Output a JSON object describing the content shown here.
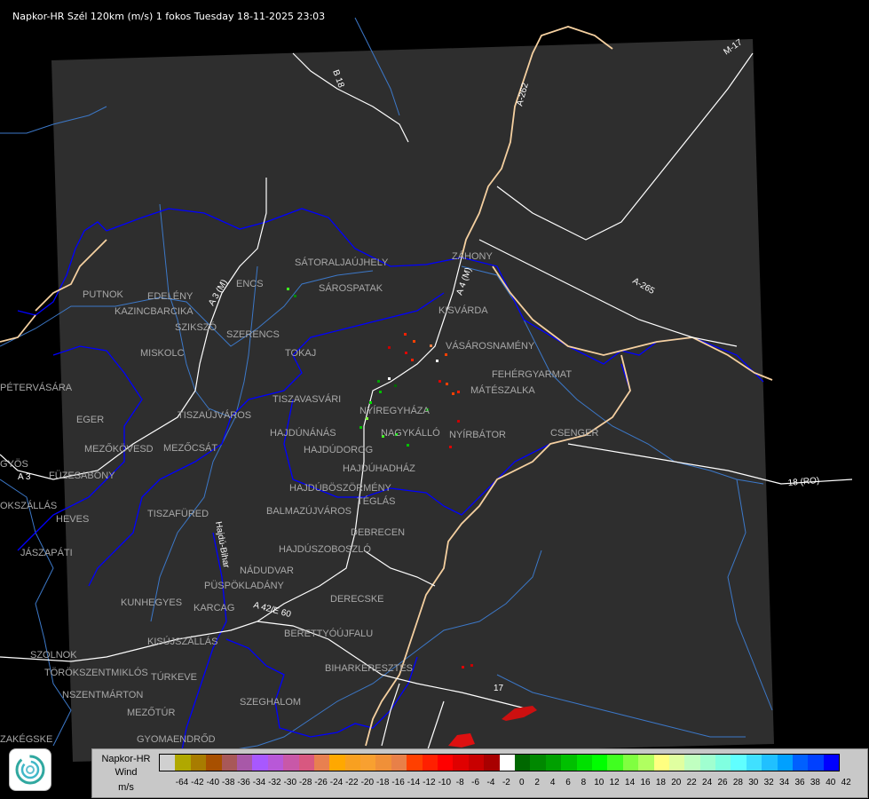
{
  "header": {
    "title": "Napkor-HR Szél 120km (m/s) 1 fokos Tuesday 18-11-2025 23:03"
  },
  "map": {
    "background_color": "#000000",
    "coverage_color": "#2e2e2e",
    "border_color": "#0000ff",
    "national_border_color": "#f5d0a0",
    "river_color": "#3c78c8",
    "road_color": "#ffffff",
    "cities": [
      "SÁTORALJAÚJHELY",
      "SÁROSPATAK",
      "ZÁHONY",
      "KISVÁRDA",
      "VÁSÁROSNAMÉNY",
      "PUTNOK",
      "EDELÉNY",
      "KAZINCBARCIKA",
      "SZIKSZÓ",
      "ENCS",
      "SZERENCS",
      "TOKAJ",
      "MISKOLC",
      "PÉTERVÁSÁRA",
      "EGER",
      "TISZAÚJVÁROS",
      "TISZAVASVÁRI",
      "HAJDÚNÁNÁS",
      "HAJDÚDOROG",
      "NYÍREGYHÁZA",
      "NAGYKÁLLÓ",
      "MÁTÉSZALKA",
      "FEHÉRGYARMAT",
      "NYÍRBÁTOR",
      "CSENGER",
      "MEZŐKÖVESD",
      "MEZŐCSÁT",
      "GYÖS",
      "FÜZESABONY",
      "HAJDÚBÖSZÖRMÉNY",
      "HAJDÚHADHÁZ",
      "TÉGLÁS",
      "BALMAZÚJVÁROS",
      "TISZAFÜRED",
      "HEVES",
      "OKSZÁLLÁS",
      "DEBRECEN",
      "JÁSZAPÁTI",
      "NÁDUDVAR",
      "HAJDÚSZOBOSZLÓ",
      "KUNHEGYES",
      "KARCAG",
      "PÜSPÖKLADÁNY",
      "DERECSKE",
      "BERETTYÓÚJFALU",
      "KISÚJSZÁLLÁS",
      "SZOLNOK",
      "TÖRÖKSZENTMIKLÓS",
      "TÚRKEVE",
      "BIHARKERESZTES",
      "SZEGHALOM",
      "MEZŐTÚR",
      "ZAKÉGSKE",
      "GYOMAENDRŐD",
      "NSZENTMÁRTON"
    ],
    "road_labels": [
      "B 18",
      "A-262",
      "M-17",
      "A-265",
      "A 3 (M)",
      "A 4 (M)",
      "18 (RO)",
      "A 42/E 60",
      "17",
      "A 3",
      "Hajdú-Bihar"
    ]
  },
  "legend": {
    "title_lines": [
      "Napkor-HR",
      "Wind",
      "m/s"
    ],
    "no_data_color": "#d0d0d0",
    "labels": [
      "-64",
      "-42",
      "-40",
      "-38",
      "-36",
      "-34",
      "-32",
      "-30",
      "-28",
      "-26",
      "-24",
      "-22",
      "-20",
      "-18",
      "-16",
      "-14",
      "-12",
      "-10",
      "-8",
      "-6",
      "-4",
      "-2",
      "0",
      "2",
      "4",
      "6",
      "8",
      "10",
      "12",
      "14",
      "16",
      "18",
      "20",
      "22",
      "24",
      "26",
      "28",
      "30",
      "32",
      "34",
      "36",
      "38",
      "40",
      "42"
    ],
    "colors": [
      "#d0d0d0",
      "#b0a800",
      "#a87c00",
      "#a85000",
      "#a85858",
      "#a858a8",
      "#a858ff",
      "#b858d8",
      "#c858a8",
      "#d85880",
      "#e88050",
      "#ffa800",
      "#f8a020",
      "#f8a030",
      "#f09038",
      "#e88048",
      "#ff4000",
      "#ff2000",
      "#ff0000",
      "#e00000",
      "#c80000",
      "#a80000",
      "#ffffff",
      "#006800",
      "#008800",
      "#00a000",
      "#00c000",
      "#00e000",
      "#00ff00",
      "#40ff20",
      "#80ff40",
      "#b0ff60",
      "#ffff80",
      "#e0ffa0",
      "#c0ffc0",
      "#a0ffd0",
      "#80ffe0",
      "#60ffff",
      "#40e0ff",
      "#20c0ff",
      "#00a0ff",
      "#0060ff",
      "#0040ff",
      "#0000ff"
    ]
  }
}
